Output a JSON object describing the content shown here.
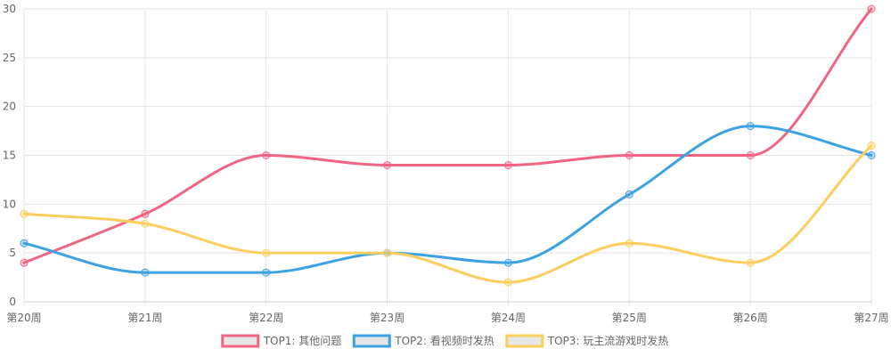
{
  "chart_data": {
    "type": "line",
    "categories": [
      "第20周",
      "第21周",
      "第22周",
      "第23周",
      "第24周",
      "第25周",
      "第26周",
      "第27周"
    ],
    "series": [
      {
        "name": "TOP1: 其他问题",
        "values": [
          4,
          9,
          15,
          14,
          14,
          15,
          15,
          30
        ],
        "color": "#f06584"
      },
      {
        "name": "TOP2: 看视频时发热",
        "values": [
          6,
          3,
          3,
          5,
          4,
          11,
          18,
          15
        ],
        "color": "#3ea2e2"
      },
      {
        "name": "TOP3: 玩主流游戏时发热",
        "values": [
          9,
          8,
          5,
          5,
          2,
          6,
          4,
          16
        ],
        "color": "#fbcf5e"
      }
    ],
    "ylim": [
      0,
      30
    ],
    "yticks": [
      0,
      5,
      10,
      15,
      20,
      25,
      30
    ],
    "grid": true,
    "legend_position": "bottom-center",
    "legend_box_color": "#e6e6e6",
    "title": "",
    "xlabel": "",
    "ylabel": ""
  }
}
